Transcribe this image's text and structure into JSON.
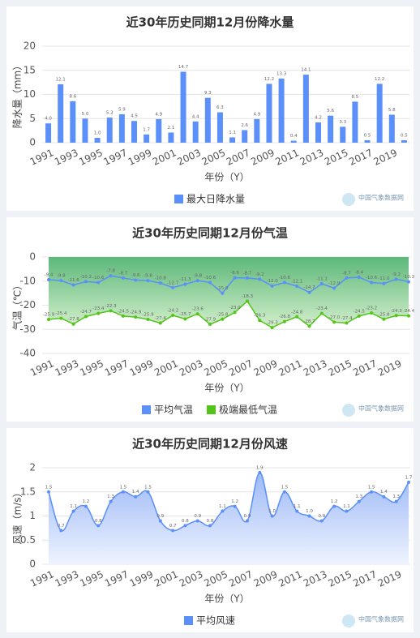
{
  "chart_data": [
    {
      "type": "bar",
      "title": "近30年历史同期12月份降水量",
      "y_label": "降水量（mm）",
      "x_label": "年份（Y）",
      "watermark": "中国气象数据网",
      "categories": [
        "1991",
        null,
        "1993",
        null,
        "1995",
        null,
        "1997",
        null,
        "1999",
        null,
        "2001",
        null,
        "2003",
        null,
        "2005",
        null,
        "2007",
        null,
        "2009",
        null,
        "2011",
        null,
        "2013",
        null,
        "2015",
        null,
        "2017",
        null,
        "2019",
        null
      ],
      "series": [
        {
          "name": "最大日降水量",
          "color": "#5b8ff9",
          "values": [
            4.0,
            12.1,
            8.6,
            5.0,
            1.0,
            5.2,
            5.9,
            4.5,
            1.7,
            4.9,
            2.1,
            14.7,
            4.4,
            9.3,
            6.3,
            1.1,
            2.6,
            4.9,
            12.2,
            13.3,
            0.4,
            14.1,
            4.2,
            5.6,
            3.3,
            8.5,
            0.5,
            12.2,
            5.8,
            0.5
          ],
          "value_labels": [
            "4.0",
            "12.1",
            "8.6",
            "5.0",
            "1.0",
            "5.2",
            "5.9",
            "4.5",
            "1.7",
            "4.9",
            "2.1",
            "14.7",
            "4.4",
            "9.3",
            "6.3",
            "1.1",
            "2.6",
            "4.9",
            "12.2",
            "13.3",
            "0.4",
            "14.1",
            "4.2",
            "5.6",
            "3.3",
            "8.5",
            "0.5",
            "12.2",
            "5.8",
            "0.5"
          ]
        }
      ],
      "ylim": [
        0,
        20
      ],
      "yticks": [
        0,
        5,
        10,
        15,
        20
      ],
      "grid": true
    },
    {
      "type": "line",
      "title": "近30年历史同期12月份气温",
      "y_label": "气温（℃）",
      "x_label": "年份（Y）",
      "watermark": "中国气象数据网",
      "fill": "to-top",
      "categories": [
        "1991",
        null,
        "1993",
        null,
        "1995",
        null,
        "1997",
        null,
        "1999",
        null,
        "2001",
        null,
        "2003",
        null,
        "2005",
        null,
        "2007",
        null,
        "2009",
        null,
        "2011",
        null,
        "2013",
        null,
        "2015",
        null,
        "2017",
        null,
        "2019",
        null
      ],
      "series": [
        {
          "name": "平均气温",
          "color": "#5b8ff9",
          "values": [
            -9.4,
            -9.8,
            -11.6,
            -10.2,
            -10.6,
            -7.8,
            -8.7,
            -9.6,
            -9.8,
            -10.8,
            -12.7,
            -11.3,
            -9.8,
            -10.6,
            -15.0,
            -8.6,
            -8.7,
            -9.2,
            -12.0,
            -10.6,
            -12.1,
            -14.7,
            -11.1,
            -12.9,
            -8.7,
            -8.4,
            -10.6,
            -11.0,
            -9.2,
            -10.3
          ],
          "value_labels": [
            "-9.4",
            "-9.8",
            "-11.6",
            "-10.2",
            "-10.6",
            "-7.8",
            "-8.7",
            "-9.6",
            "-9.8",
            "-10.8",
            "-12.7",
            "-11.3",
            "-9.8",
            "-10.6",
            "-15.0",
            "-8.6",
            "-8.7",
            "-9.2",
            "-12.0",
            "-10.6",
            "-12.1",
            "-14.7",
            "-11.1",
            "-12.9",
            "-8.7",
            "-8.4",
            "-10.6",
            "-11.0",
            "-9.2",
            "-10.3"
          ]
        },
        {
          "name": "极端最低气温",
          "color": "#52c41a",
          "values": [
            -25.9,
            -25.4,
            -27.8,
            -24.7,
            -23.4,
            -22.3,
            -24.5,
            -24.9,
            -25.9,
            -27.4,
            -24.2,
            -25.7,
            -23.6,
            -27.9,
            -25.8,
            -23.0,
            -18.3,
            -26.3,
            -29.3,
            -26.8,
            -24.8,
            -28.7,
            -23.4,
            -27.0,
            -27.4,
            -24.5,
            -23.2,
            -25.8,
            -24.3,
            -24.4
          ],
          "value_labels": [
            "-25.9",
            "-25.4",
            "-27.8",
            "-24.7",
            "-23.4",
            "-22.3",
            "-24.5",
            "-24.9",
            "-25.9",
            "-27.4",
            "-24.2",
            "-25.7",
            "-23.6",
            "-27.9",
            "-25.8",
            "-23.0",
            "-18.3",
            "-26.3",
            "-29.3",
            "-26.8",
            "-24.8",
            "-28.7",
            "-23.4",
            "-27.0",
            "-27.4",
            "-24.5",
            "-23.2",
            "-25.8",
            "-24.3",
            "-24.4"
          ]
        }
      ],
      "ylim": [
        -40,
        0
      ],
      "yticks": [
        0,
        -10,
        -20,
        -30,
        -40
      ],
      "grid": true
    },
    {
      "type": "line",
      "title": "近30年历史同期12月份风速",
      "y_label": "风速（m/s）",
      "x_label": "年份（Y）",
      "watermark": "中国气象数据网",
      "fill": "to-bottom",
      "smooth": true,
      "categories": [
        "1991",
        null,
        "1993",
        null,
        "1995",
        null,
        "1997",
        null,
        "1999",
        null,
        "2001",
        null,
        "2003",
        null,
        "2005",
        null,
        "2007",
        null,
        "2009",
        null,
        "2011",
        null,
        "2013",
        null,
        "2015",
        null,
        "2017",
        null,
        "2019",
        null
      ],
      "series": [
        {
          "name": "平均风速",
          "color": "#5b8ff9",
          "values": [
            1.5,
            0.7,
            1.1,
            1.2,
            0.8,
            1.3,
            1.5,
            1.4,
            1.5,
            0.9,
            0.7,
            0.8,
            0.9,
            0.8,
            1.1,
            1.2,
            0.9,
            1.9,
            1.0,
            1.5,
            1.1,
            1.0,
            0.9,
            1.2,
            1.1,
            1.3,
            1.5,
            1.4,
            1.3,
            1.7
          ],
          "value_labels": [
            "1.5",
            "0.7",
            "1.1",
            "1.2",
            "0.8",
            "1.3",
            "1.5",
            "1.4",
            "1.5",
            "0.9",
            "0.7",
            "0.8",
            "0.9",
            "0.8",
            "1.1",
            "1.2",
            "0.9",
            "1.9",
            "1.0",
            "1.5",
            "1.1",
            "1.0",
            "0.9",
            "1.2",
            "1.1",
            "1.3",
            "1.5",
            "1.4",
            "1.3",
            "1.7"
          ]
        }
      ],
      "ylim": [
        0,
        2
      ],
      "yticks": [
        0,
        0.5,
        1,
        1.5,
        2
      ],
      "grid": true
    }
  ]
}
